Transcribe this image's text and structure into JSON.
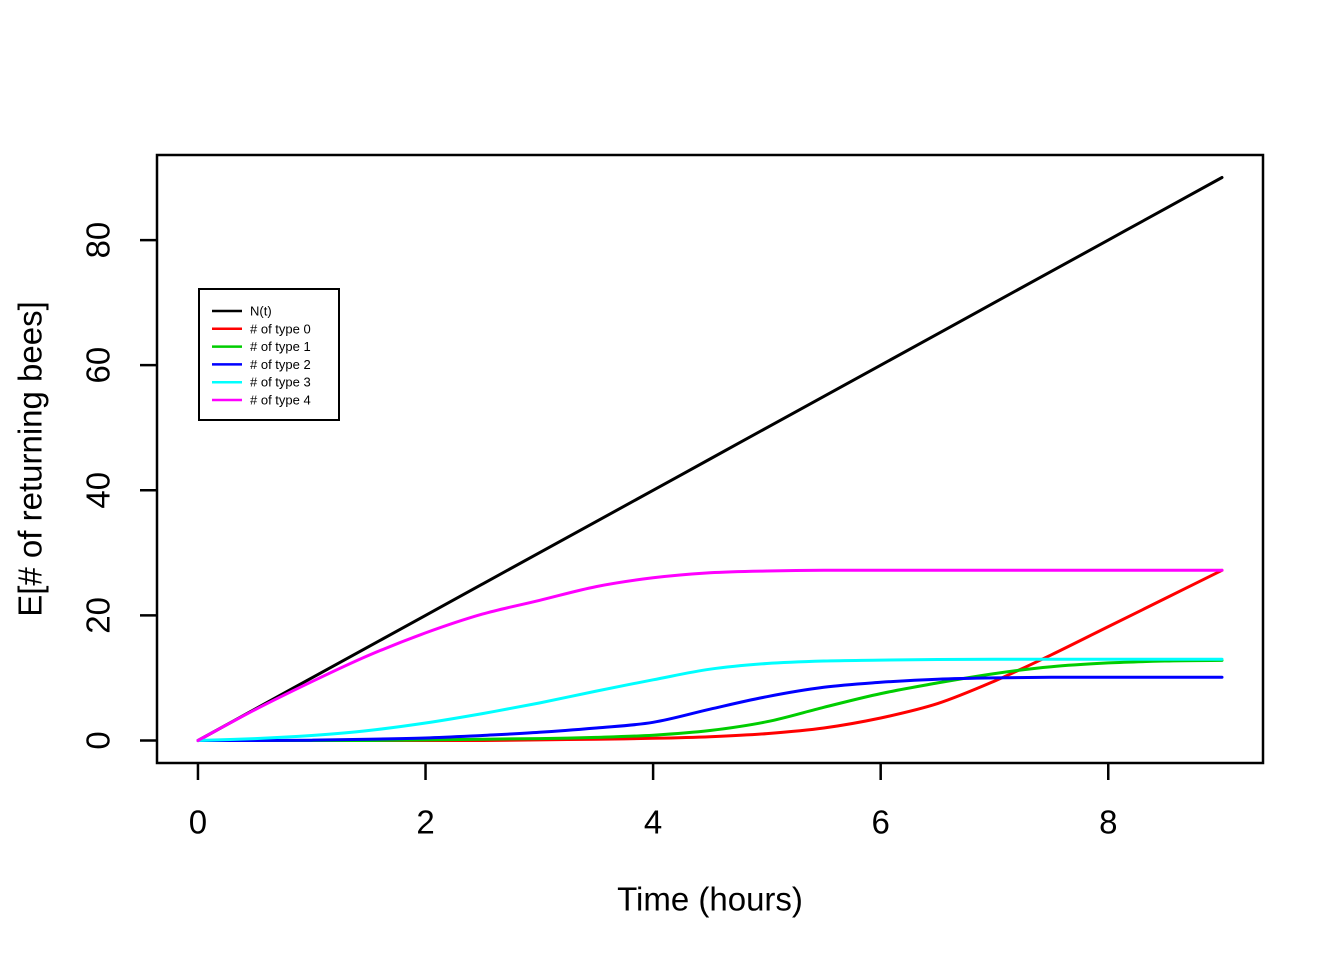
{
  "figure": {
    "background": "#ffffff",
    "foreground": "#000000"
  },
  "chart_data": {
    "type": "line",
    "title": "",
    "xlabel": "Time (hours)",
    "ylabel": "E[# of returning bees]",
    "xlim": [
      -0.36,
      9.36
    ],
    "ylim": [
      -3.6,
      93.6
    ],
    "x_ticks": [
      0,
      2,
      4,
      6,
      8
    ],
    "y_ticks": [
      0,
      20,
      40,
      60,
      80
    ],
    "grid": false,
    "legend": {
      "position": "upper-left-inside",
      "border": true
    },
    "x": [
      0,
      0.5,
      1,
      1.5,
      2,
      2.5,
      3,
      3.5,
      4,
      4.5,
      5,
      5.5,
      6,
      6.5,
      7,
      7.5,
      8,
      8.5,
      9
    ],
    "series": [
      {
        "name": "N(t)",
        "color": "#000000",
        "values": [
          0,
          5,
          10,
          15,
          20,
          25,
          30,
          35,
          40,
          45,
          50,
          55,
          60,
          65,
          70,
          75,
          80,
          85,
          90
        ]
      },
      {
        "name": "# of type 0",
        "color": "#FF0000",
        "values": [
          0,
          0,
          0,
          0,
          0,
          0,
          0.1,
          0.2,
          0.35,
          0.6,
          1.1,
          2.0,
          3.6,
          5.9,
          9.5,
          13.7,
          18.2,
          22.7,
          27.2
        ]
      },
      {
        "name": "# of type 1",
        "color": "#00CD00",
        "values": [
          0,
          0,
          0,
          0,
          0.1,
          0.2,
          0.3,
          0.5,
          0.85,
          1.6,
          3.0,
          5.3,
          7.5,
          9.2,
          10.7,
          11.8,
          12.4,
          12.7,
          12.8
        ]
      },
      {
        "name": "# of type 2",
        "color": "#0000FF",
        "values": [
          0,
          0,
          0.05,
          0.2,
          0.4,
          0.8,
          1.3,
          2.0,
          2.9,
          5.0,
          7.0,
          8.5,
          9.3,
          9.8,
          10.0,
          10.1,
          10.1,
          10.1,
          10.1
        ]
      },
      {
        "name": "# of type 3",
        "color": "#00FFFF",
        "values": [
          0,
          0.3,
          0.8,
          1.6,
          2.8,
          4.3,
          6.0,
          7.9,
          9.7,
          11.4,
          12.3,
          12.7,
          12.85,
          12.95,
          13.0,
          13.0,
          13.0,
          13.0,
          13.0
        ]
      },
      {
        "name": "# of type 4",
        "color": "#FF00FF",
        "values": [
          0,
          4.9,
          9.4,
          13.6,
          17.2,
          20.2,
          22.4,
          24.6,
          26.0,
          26.8,
          27.1,
          27.2,
          27.2,
          27.2,
          27.2,
          27.2,
          27.2,
          27.2,
          27.2
        ]
      }
    ]
  }
}
